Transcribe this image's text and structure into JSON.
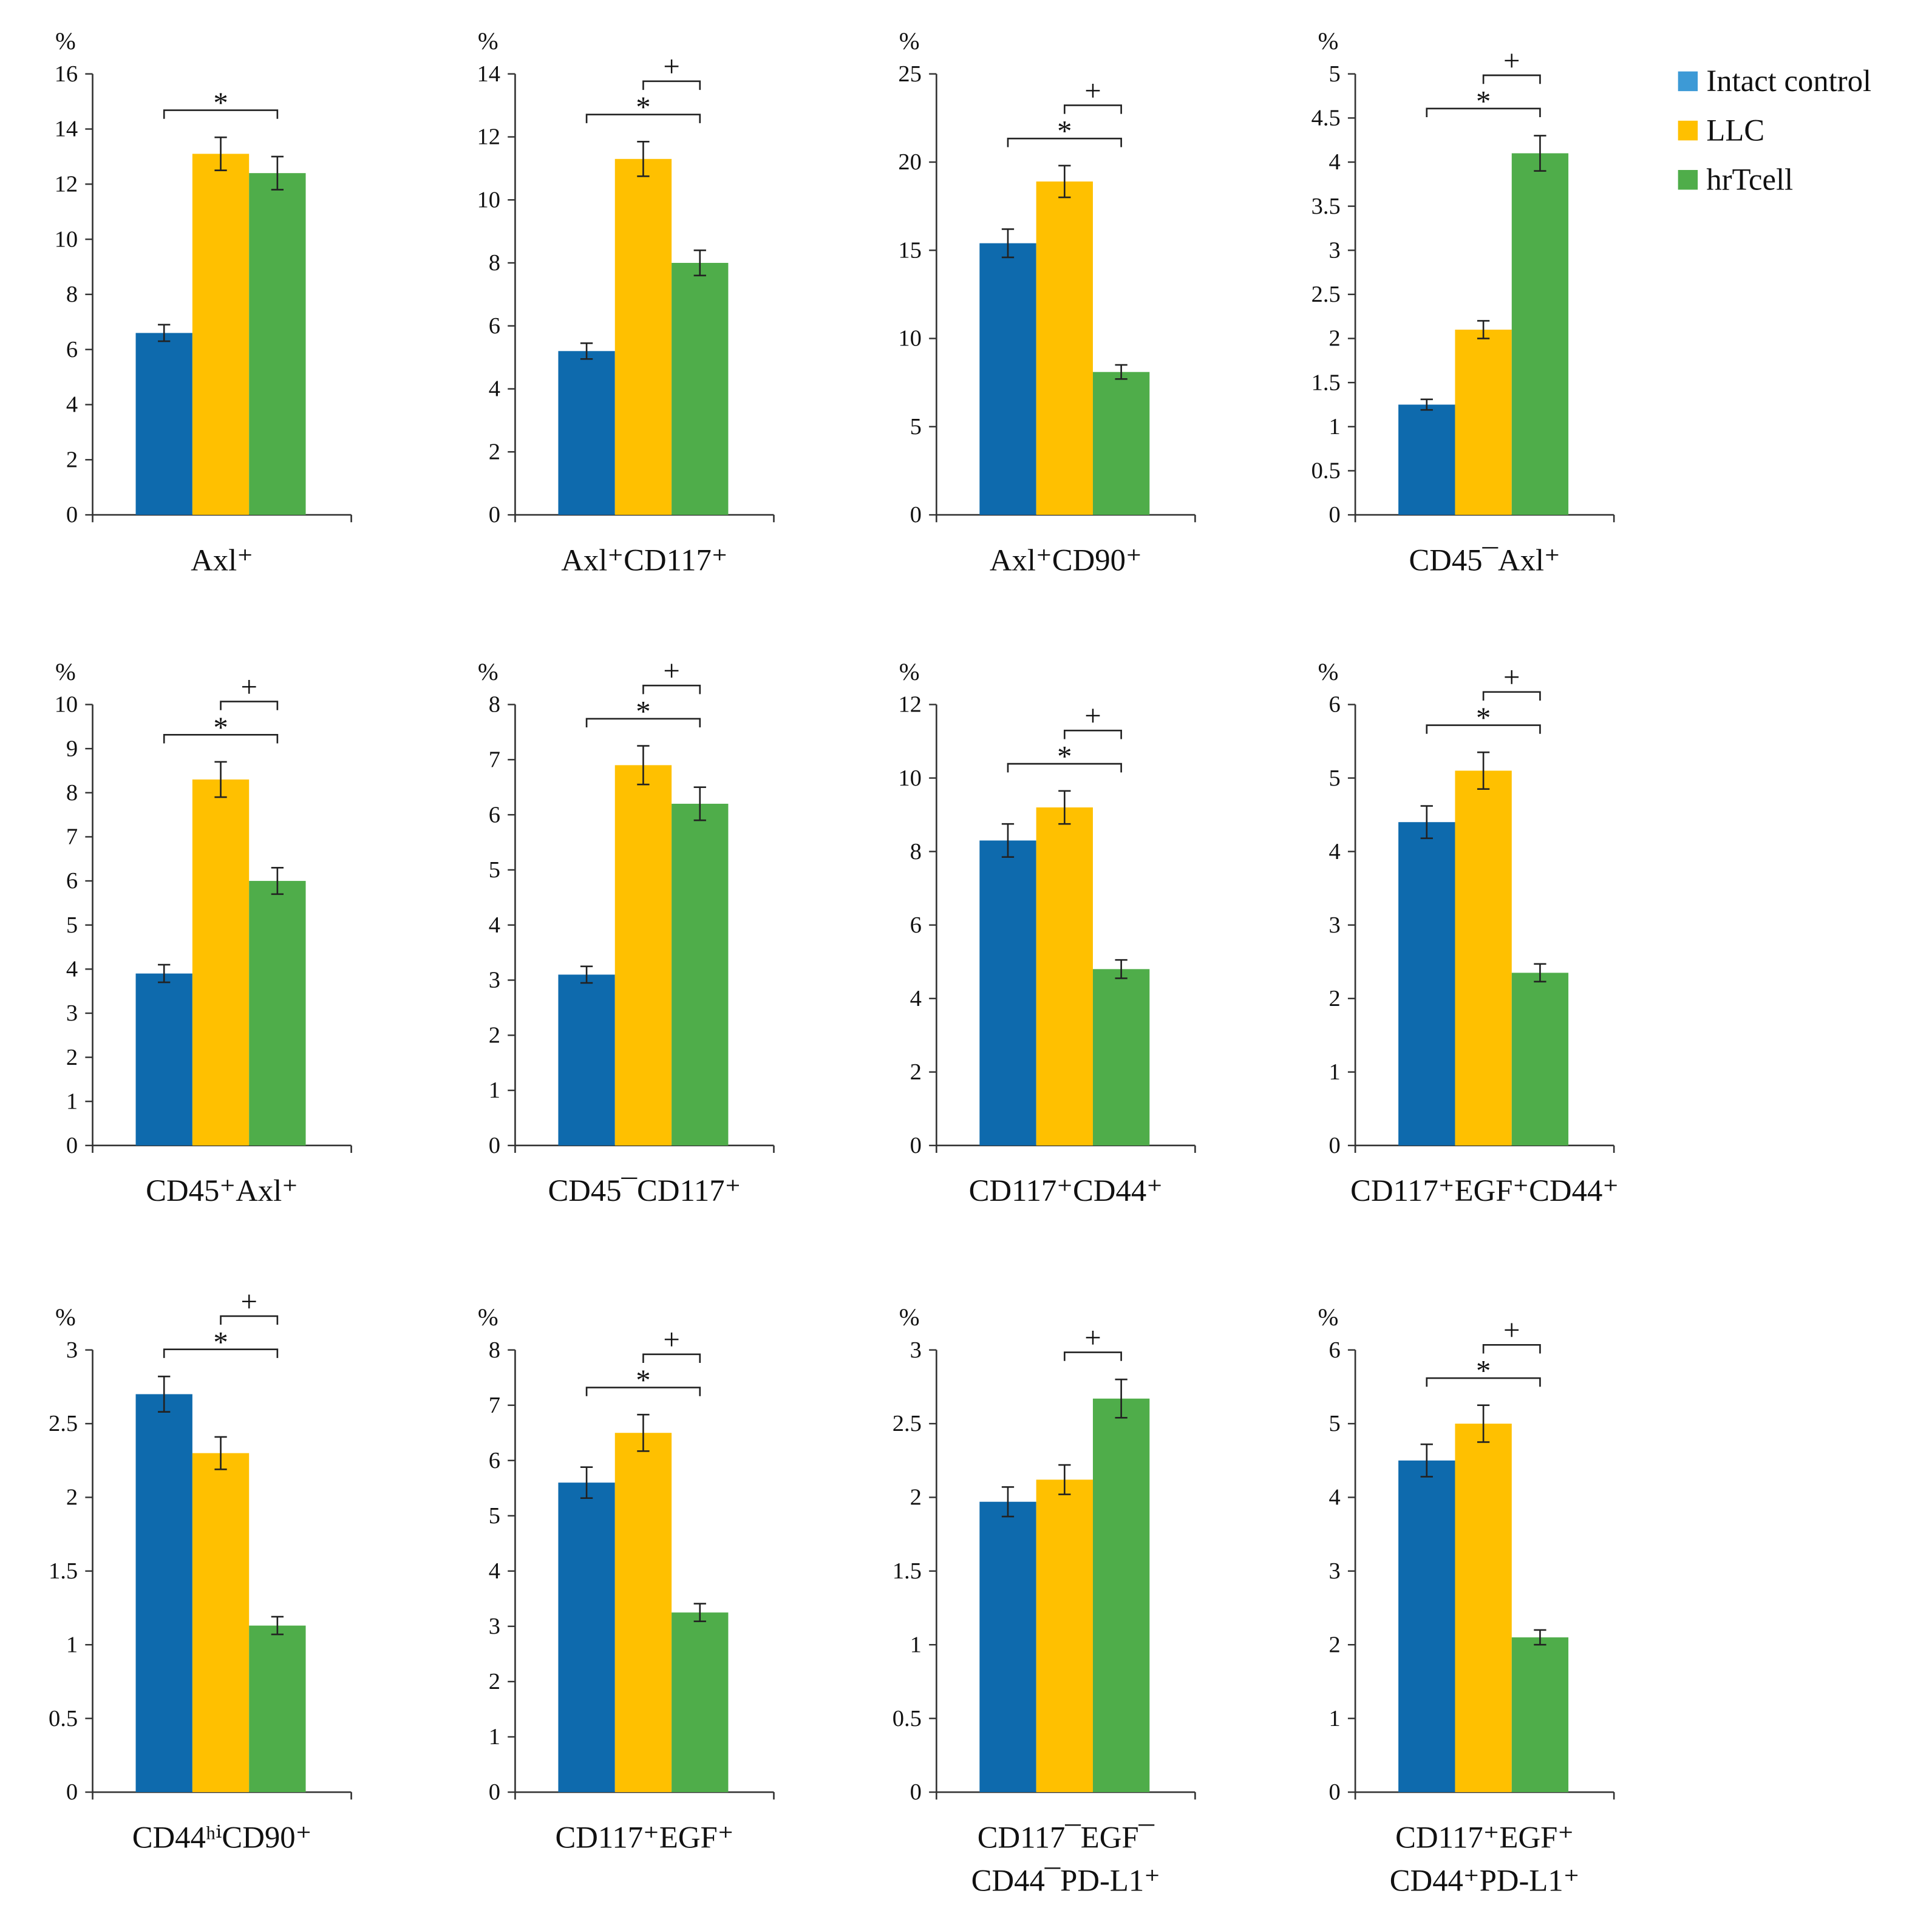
{
  "legend": [
    {
      "label": "Intact control",
      "color": "#3d9ad6"
    },
    {
      "label": "LLC",
      "color": "#ffc000"
    },
    {
      "label": "hrTcell",
      "color": "#4fad4a"
    }
  ],
  "bar_colors": [
    "#0e6aad",
    "#ffc000",
    "#4fad4a"
  ],
  "unit_label": "%",
  "chart_data": [
    {
      "type": "bar",
      "title": "Axl⁺",
      "ylabel": "%",
      "ylim": [
        0,
        16
      ],
      "step": 2,
      "series": [
        "Intact control",
        "LLC",
        "hrTcell"
      ],
      "values": [
        6.6,
        13.1,
        12.4
      ],
      "errors": [
        0.3,
        0.6,
        0.6
      ],
      "significance": [
        {
          "symbol": "*",
          "from": 0,
          "to": 2
        }
      ]
    },
    {
      "type": "bar",
      "title": "Axl⁺CD117⁺",
      "ylabel": "%",
      "ylim": [
        0,
        14
      ],
      "step": 2,
      "series": [
        "Intact control",
        "LLC",
        "hrTcell"
      ],
      "values": [
        5.2,
        11.3,
        8.0
      ],
      "errors": [
        0.25,
        0.55,
        0.4
      ],
      "significance": [
        {
          "symbol": "*",
          "from": 0,
          "to": 2
        },
        {
          "symbol": "+",
          "from": 1,
          "to": 2
        }
      ]
    },
    {
      "type": "bar",
      "title": "Axl⁺CD90⁺",
      "ylabel": "%",
      "ylim": [
        0,
        25
      ],
      "step": 5,
      "series": [
        "Intact control",
        "LLC",
        "hrTcell"
      ],
      "values": [
        15.4,
        18.9,
        8.1
      ],
      "errors": [
        0.8,
        0.9,
        0.4
      ],
      "significance": [
        {
          "symbol": "*",
          "from": 0,
          "to": 2
        },
        {
          "symbol": "+",
          "from": 1,
          "to": 2
        }
      ]
    },
    {
      "type": "bar",
      "title": "CD45¯Axl⁺",
      "ylabel": "%",
      "ylim": [
        0,
        5
      ],
      "step": 0.5,
      "series": [
        "Intact control",
        "LLC",
        "hrTcell"
      ],
      "values": [
        1.25,
        2.1,
        4.1
      ],
      "errors": [
        0.06,
        0.1,
        0.2
      ],
      "significance": [
        {
          "symbol": "*",
          "from": 0,
          "to": 2
        },
        {
          "symbol": "+",
          "from": 1,
          "to": 2
        }
      ]
    },
    {
      "type": "bar",
      "title": "CD45⁺Axl⁺",
      "ylabel": "%",
      "ylim": [
        0,
        10
      ],
      "step": 1,
      "series": [
        "Intact control",
        "LLC",
        "hrTcell"
      ],
      "values": [
        3.9,
        8.3,
        6.0
      ],
      "errors": [
        0.2,
        0.4,
        0.3
      ],
      "significance": [
        {
          "symbol": "*",
          "from": 0,
          "to": 2
        },
        {
          "symbol": "+",
          "from": 1,
          "to": 2
        }
      ]
    },
    {
      "type": "bar",
      "title": "CD45¯CD117⁺",
      "ylabel": "%",
      "ylim": [
        0,
        8
      ],
      "step": 1,
      "series": [
        "Intact control",
        "LLC",
        "hrTcell"
      ],
      "values": [
        3.1,
        6.9,
        6.2
      ],
      "errors": [
        0.15,
        0.35,
        0.3
      ],
      "significance": [
        {
          "symbol": "*",
          "from": 0,
          "to": 2
        },
        {
          "symbol": "+",
          "from": 1,
          "to": 2
        }
      ]
    },
    {
      "type": "bar",
      "title": "CD117⁺CD44⁺",
      "ylabel": "%",
      "ylim": [
        0,
        12
      ],
      "step": 2,
      "series": [
        "Intact control",
        "LLC",
        "hrTcell"
      ],
      "values": [
        8.3,
        9.2,
        4.8
      ],
      "errors": [
        0.45,
        0.45,
        0.25
      ],
      "significance": [
        {
          "symbol": "*",
          "from": 0,
          "to": 2
        },
        {
          "symbol": "+",
          "from": 1,
          "to": 2
        }
      ]
    },
    {
      "type": "bar",
      "title": "CD117⁺EGF⁺CD44⁺",
      "ylabel": "%",
      "ylim": [
        0,
        6
      ],
      "step": 1,
      "series": [
        "Intact control",
        "LLC",
        "hrTcell"
      ],
      "values": [
        4.4,
        5.1,
        2.35
      ],
      "errors": [
        0.22,
        0.25,
        0.12
      ],
      "significance": [
        {
          "symbol": "*",
          "from": 0,
          "to": 2
        },
        {
          "symbol": "+",
          "from": 1,
          "to": 2
        }
      ]
    },
    {
      "type": "bar",
      "title": "CD44ʰⁱCD90⁺",
      "ylabel": "%",
      "ylim": [
        0,
        3
      ],
      "step": 0.5,
      "series": [
        "Intact control",
        "LLC",
        "hrTcell"
      ],
      "values": [
        2.7,
        2.3,
        1.13
      ],
      "errors": [
        0.12,
        0.11,
        0.06
      ],
      "significance": [
        {
          "symbol": "*",
          "from": 0,
          "to": 2
        },
        {
          "symbol": "+",
          "from": 1,
          "to": 2
        }
      ]
    },
    {
      "type": "bar",
      "title": "CD117⁺EGF⁺",
      "ylabel": "%",
      "ylim": [
        0,
        8
      ],
      "step": 1,
      "series": [
        "Intact control",
        "LLC",
        "hrTcell"
      ],
      "values": [
        5.6,
        6.5,
        3.25
      ],
      "errors": [
        0.28,
        0.33,
        0.16
      ],
      "significance": [
        {
          "symbol": "*",
          "from": 0,
          "to": 2
        },
        {
          "symbol": "+",
          "from": 1,
          "to": 2
        }
      ]
    },
    {
      "type": "bar",
      "title": "CD117¯EGF¯",
      "title2": "CD44¯PD-L1⁺",
      "ylabel": "%",
      "ylim": [
        0,
        3
      ],
      "step": 0.5,
      "series": [
        "Intact control",
        "LLC",
        "hrTcell"
      ],
      "values": [
        1.97,
        2.12,
        2.67
      ],
      "errors": [
        0.1,
        0.1,
        0.13
      ],
      "significance": [
        {
          "symbol": "+",
          "from": 1,
          "to": 2
        }
      ]
    },
    {
      "type": "bar",
      "title": "CD117⁺EGF⁺",
      "title2": "CD44⁺PD-L1⁺",
      "ylabel": "%",
      "ylim": [
        0,
        6
      ],
      "step": 1,
      "series": [
        "Intact control",
        "LLC",
        "hrTcell"
      ],
      "values": [
        4.5,
        5.0,
        2.1
      ],
      "errors": [
        0.22,
        0.25,
        0.1
      ],
      "significance": [
        {
          "symbol": "*",
          "from": 0,
          "to": 2
        },
        {
          "symbol": "+",
          "from": 1,
          "to": 2
        }
      ]
    }
  ]
}
